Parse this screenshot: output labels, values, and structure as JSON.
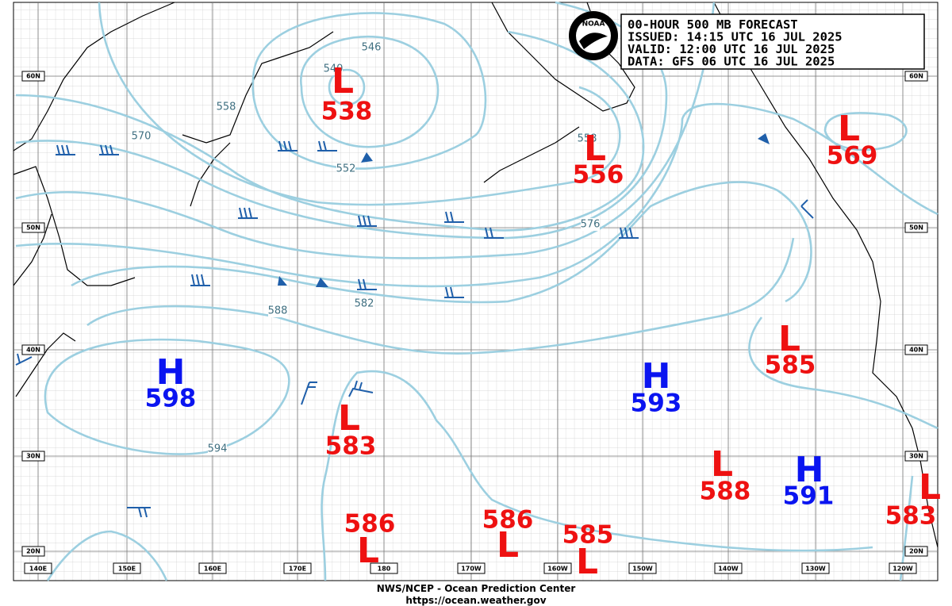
{
  "header": {
    "logo": "NOAA",
    "lines": [
      "00-HOUR 500 MB FORECAST",
      "ISSUED: 14:15 UTC 16 JUL 2025",
      "VALID:  12:00 UTC 16 JUL 2025",
      "DATA:  GFS 06 UTC 16 JUL 2025"
    ]
  },
  "longitude_labels": [
    "140E",
    "150E",
    "160E",
    "170E",
    "180",
    "170W",
    "160W",
    "150W",
    "140W",
    "130W",
    "120W"
  ],
  "latitude_labels": [
    "60N",
    "50N",
    "40N",
    "30N",
    "20N"
  ],
  "centers": [
    {
      "letter": "L",
      "value": 538
    },
    {
      "letter": "L",
      "value": 556
    },
    {
      "letter": "L",
      "value": 569
    },
    {
      "letter": "H",
      "value": 598
    },
    {
      "letter": "L",
      "value": 585
    },
    {
      "letter": "H",
      "value": 593
    },
    {
      "letter": "L",
      "value": 583
    },
    {
      "letter": "L",
      "value": 588
    },
    {
      "letter": "H",
      "value": 591
    },
    {
      "letter": "L",
      "value": 583
    },
    {
      "letter": "L",
      "value": 586
    },
    {
      "letter": "L",
      "value": 586
    },
    {
      "letter": "L",
      "value": 585
    }
  ],
  "contour_labels": [
    540,
    546,
    558,
    570,
    552,
    558,
    576,
    582,
    588,
    594
  ],
  "footer": {
    "line1": "NWS/NCEP - Ocean Prediction Center",
    "line2": "https://ocean.weather.gov"
  }
}
